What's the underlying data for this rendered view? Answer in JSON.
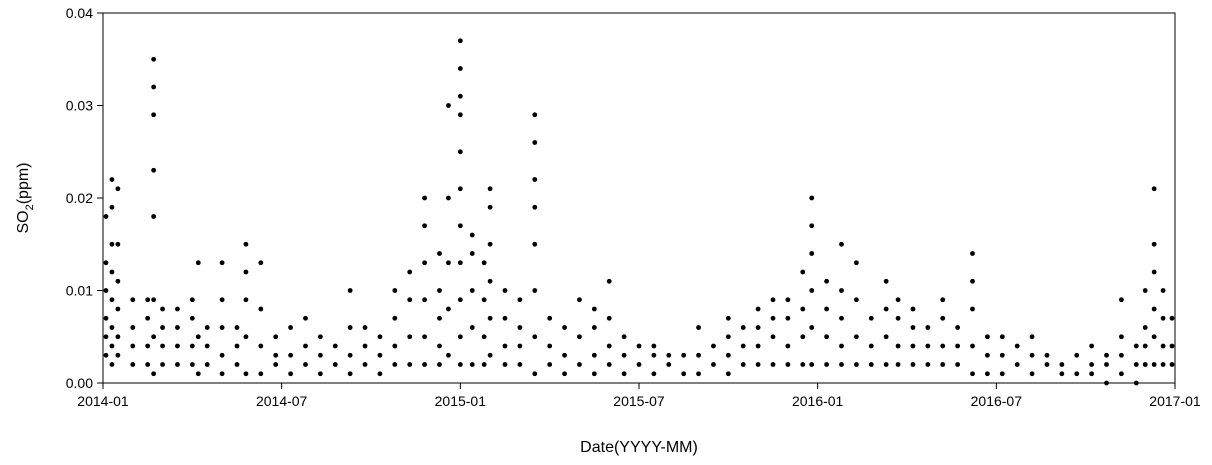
{
  "chart_data": {
    "type": "scatter",
    "xlabel": "Date(YYYY-MM)",
    "ylabel": "SO",
    "ylabel_sub": "2",
    "ylabel_unit": "(ppm)",
    "xlim": [
      0,
      36
    ],
    "xticks": [
      {
        "value": 0,
        "label": "2014-01"
      },
      {
        "value": 6,
        "label": "2014-07"
      },
      {
        "value": 12,
        "label": "2015-01"
      },
      {
        "value": 18,
        "label": "2015-07"
      },
      {
        "value": 24,
        "label": "2016-01"
      },
      {
        "value": 30,
        "label": "2016-07"
      },
      {
        "value": 36,
        "label": "2017-01"
      }
    ],
    "ylim": [
      0,
      0.04
    ],
    "yticks": [
      {
        "value": 0,
        "label": "0.00"
      },
      0.01,
      0.02,
      0.03,
      0.04
    ],
    "color": "#000000",
    "x": [
      0.1,
      0.1,
      0.1,
      0.1,
      0.1,
      0.1,
      0.3,
      0.3,
      0.3,
      0.3,
      0.3,
      0.3,
      0.3,
      0.3,
      0.5,
      0.5,
      0.5,
      0.5,
      0.5,
      0.5,
      1.0,
      1.0,
      1.0,
      1.0,
      1.5,
      1.5,
      1.5,
      1.5,
      1.7,
      1.7,
      1.7,
      1.7,
      1.7,
      1.7,
      1.7,
      1.7,
      2.0,
      2.0,
      2.0,
      2.0,
      2.5,
      2.5,
      2.5,
      2.5,
      3.0,
      3.0,
      3.0,
      3.0,
      3.2,
      3.2,
      3.2,
      3.5,
      3.5,
      3.5,
      4.0,
      4.0,
      4.0,
      4.0,
      4.0,
      4.5,
      4.5,
      4.5,
      4.8,
      4.8,
      4.8,
      4.8,
      4.8,
      5.3,
      5.3,
      5.3,
      5.3,
      5.8,
      5.8,
      5.8,
      6.3,
      6.3,
      6.3,
      6.8,
      6.8,
      6.8,
      7.3,
      7.3,
      7.3,
      7.8,
      7.8,
      8.3,
      8.3,
      8.3,
      8.3,
      8.8,
      8.8,
      8.8,
      9.3,
      9.3,
      9.3,
      9.8,
      9.8,
      9.8,
      9.8,
      10.3,
      10.3,
      10.3,
      10.3,
      10.8,
      10.8,
      10.8,
      10.8,
      10.8,
      10.8,
      11.3,
      11.3,
      11.3,
      11.3,
      11.3,
      11.6,
      11.6,
      11.6,
      11.6,
      11.6,
      12.0,
      12.0,
      12.0,
      12.0,
      12.0,
      12.0,
      12.0,
      12.0,
      12.0,
      12.0,
      12.0,
      12.4,
      12.4,
      12.4,
      12.4,
      12.4,
      12.8,
      12.8,
      12.8,
      12.8,
      13.0,
      13.0,
      13.0,
      13.0,
      13.0,
      13.0,
      13.5,
      13.5,
      13.5,
      13.5,
      14.0,
      14.0,
      14.0,
      14.0,
      14.5,
      14.5,
      14.5,
      14.5,
      14.5,
      14.5,
      14.5,
      14.5,
      15.0,
      15.0,
      15.0,
      15.5,
      15.5,
      15.5,
      16.0,
      16.0,
      16.0,
      16.5,
      16.5,
      16.5,
      16.5,
      17.0,
      17.0,
      17.0,
      17.0,
      17.5,
      17.5,
      17.5,
      18.0,
      18.0,
      18.5,
      18.5,
      18.5,
      19.0,
      19.0,
      19.5,
      19.5,
      20.0,
      20.0,
      20.0,
      20.5,
      20.5,
      21.0,
      21.0,
      21.0,
      21.0,
      21.5,
      21.5,
      21.5,
      22.0,
      22.0,
      22.0,
      22.0,
      22.5,
      22.5,
      22.5,
      22.5,
      23.0,
      23.0,
      23.0,
      23.0,
      23.5,
      23.5,
      23.5,
      23.5,
      23.8,
      23.8,
      23.8,
      23.8,
      23.8,
      23.8,
      24.3,
      24.3,
      24.3,
      24.3,
      24.8,
      24.8,
      24.8,
      24.8,
      24.8,
      25.3,
      25.3,
      25.3,
      25.3,
      25.8,
      25.8,
      25.8,
      26.3,
      26.3,
      26.3,
      26.3,
      26.7,
      26.7,
      26.7,
      26.7,
      27.2,
      27.2,
      27.2,
      27.2,
      27.7,
      27.7,
      27.7,
      28.2,
      28.2,
      28.2,
      28.2,
      28.7,
      28.7,
      28.7,
      29.2,
      29.2,
      29.2,
      29.2,
      29.2,
      29.7,
      29.7,
      29.7,
      30.2,
      30.2,
      30.2,
      30.7,
      30.7,
      31.2,
      31.2,
      31.2,
      31.7,
      31.7,
      32.2,
      32.2,
      32.7,
      32.7,
      33.2,
      33.2,
      33.2,
      33.7,
      33.7,
      33.7,
      34.2,
      34.2,
      34.2,
      34.2,
      34.7,
      34.7,
      34.7,
      35.0,
      35.0,
      35.0,
      35.0,
      35.3,
      35.3,
      35.3,
      35.3,
      35.3,
      35.3,
      35.6,
      35.6,
      35.6,
      35.6,
      35.9,
      35.9,
      35.9
    ],
    "values": [
      0.003,
      0.005,
      0.007,
      0.01,
      0.013,
      0.018,
      0.002,
      0.004,
      0.006,
      0.009,
      0.012,
      0.015,
      0.019,
      0.022,
      0.003,
      0.005,
      0.008,
      0.011,
      0.015,
      0.021,
      0.002,
      0.004,
      0.006,
      0.009,
      0.002,
      0.004,
      0.007,
      0.009,
      0.001,
      0.005,
      0.009,
      0.018,
      0.023,
      0.029,
      0.032,
      0.035,
      0.002,
      0.004,
      0.006,
      0.008,
      0.002,
      0.004,
      0.006,
      0.008,
      0.002,
      0.004,
      0.007,
      0.009,
      0.001,
      0.005,
      0.013,
      0.002,
      0.004,
      0.006,
      0.001,
      0.003,
      0.006,
      0.009,
      0.013,
      0.002,
      0.004,
      0.006,
      0.001,
      0.005,
      0.009,
      0.012,
      0.015,
      0.001,
      0.004,
      0.008,
      0.013,
      0.002,
      0.003,
      0.005,
      0.001,
      0.003,
      0.006,
      0.002,
      0.004,
      0.007,
      0.001,
      0.003,
      0.005,
      0.002,
      0.004,
      0.001,
      0.003,
      0.006,
      0.01,
      0.002,
      0.004,
      0.006,
      0.001,
      0.003,
      0.005,
      0.002,
      0.004,
      0.007,
      0.01,
      0.002,
      0.005,
      0.009,
      0.012,
      0.002,
      0.005,
      0.009,
      0.013,
      0.017,
      0.02,
      0.002,
      0.004,
      0.007,
      0.01,
      0.014,
      0.003,
      0.008,
      0.013,
      0.02,
      0.03,
      0.002,
      0.005,
      0.009,
      0.013,
      0.017,
      0.021,
      0.025,
      0.029,
      0.031,
      0.034,
      0.037,
      0.002,
      0.006,
      0.01,
      0.014,
      0.016,
      0.002,
      0.005,
      0.009,
      0.013,
      0.003,
      0.007,
      0.011,
      0.015,
      0.019,
      0.021,
      0.002,
      0.004,
      0.007,
      0.01,
      0.002,
      0.004,
      0.006,
      0.009,
      0.001,
      0.005,
      0.01,
      0.015,
      0.019,
      0.022,
      0.026,
      0.029,
      0.002,
      0.004,
      0.007,
      0.001,
      0.003,
      0.006,
      0.002,
      0.005,
      0.009,
      0.001,
      0.003,
      0.006,
      0.008,
      0.002,
      0.004,
      0.007,
      0.011,
      0.001,
      0.003,
      0.005,
      0.002,
      0.004,
      0.001,
      0.003,
      0.004,
      0.002,
      0.003,
      0.001,
      0.003,
      0.001,
      0.003,
      0.006,
      0.002,
      0.004,
      0.001,
      0.003,
      0.005,
      0.007,
      0.002,
      0.004,
      0.006,
      0.002,
      0.004,
      0.006,
      0.008,
      0.002,
      0.005,
      0.007,
      0.009,
      0.002,
      0.004,
      0.007,
      0.009,
      0.002,
      0.005,
      0.008,
      0.012,
      0.002,
      0.006,
      0.01,
      0.014,
      0.017,
      0.02,
      0.002,
      0.005,
      0.008,
      0.011,
      0.002,
      0.004,
      0.007,
      0.01,
      0.015,
      0.002,
      0.005,
      0.009,
      0.013,
      0.002,
      0.004,
      0.007,
      0.002,
      0.005,
      0.008,
      0.011,
      0.002,
      0.004,
      0.007,
      0.009,
      0.002,
      0.004,
      0.006,
      0.008,
      0.002,
      0.004,
      0.006,
      0.002,
      0.004,
      0.007,
      0.009,
      0.002,
      0.004,
      0.006,
      0.001,
      0.004,
      0.008,
      0.011,
      0.014,
      0.001,
      0.003,
      0.005,
      0.001,
      0.003,
      0.005,
      0.002,
      0.004,
      0.001,
      0.003,
      0.005,
      0.002,
      0.003,
      0.001,
      0.002,
      0.001,
      0.003,
      0.001,
      0.002,
      0.004,
      0,
      0.002,
      0.003,
      0.001,
      0.003,
      0.005,
      0.009,
      0,
      0.002,
      0.004,
      0.002,
      0.004,
      0.006,
      0.01,
      0.002,
      0.005,
      0.008,
      0.012,
      0.015,
      0.021,
      0.002,
      0.004,
      0.007,
      0.01,
      0.002,
      0.004,
      0.007
    ]
  }
}
